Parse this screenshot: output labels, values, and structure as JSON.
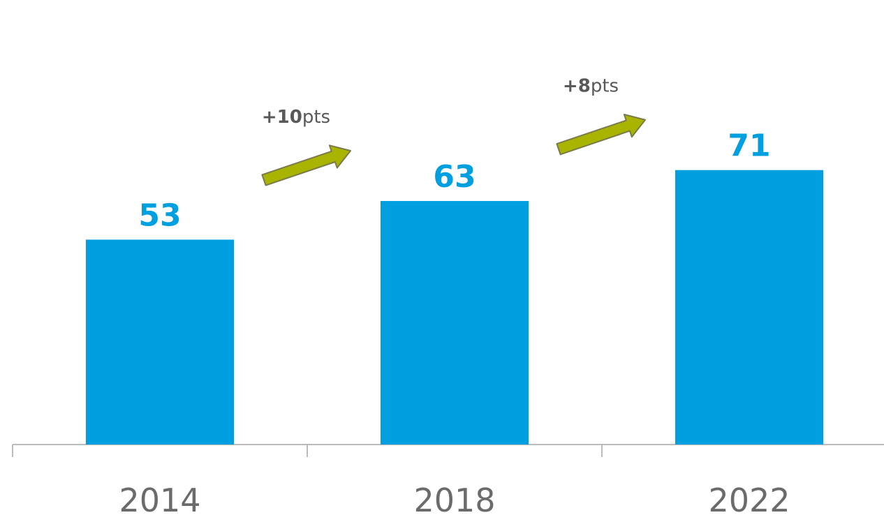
{
  "chart_data": {
    "type": "bar",
    "categories": [
      "2014",
      "2018",
      "2022"
    ],
    "values": [
      53,
      63,
      71
    ],
    "value_labels": [
      "53",
      "63",
      "71"
    ],
    "annotations": [
      {
        "from": "2014",
        "to": "2018",
        "value": "+10",
        "unit": "pts"
      },
      {
        "from": "2018",
        "to": "2022",
        "value": "+8",
        "unit": "pts"
      }
    ],
    "ylim": [
      0,
      100
    ],
    "grid": false,
    "legend": "none",
    "colors": {
      "bar": "#009FDF",
      "value_label": "#009FDF",
      "arrow_fill": "#A9B400",
      "arrow_stroke": "#7A7A4A",
      "axis": "#A6A6A6",
      "category_label": "#6B6B6B",
      "annotation_text": "#595959"
    },
    "icons": [
      "up-right-arrow-icon"
    ]
  }
}
